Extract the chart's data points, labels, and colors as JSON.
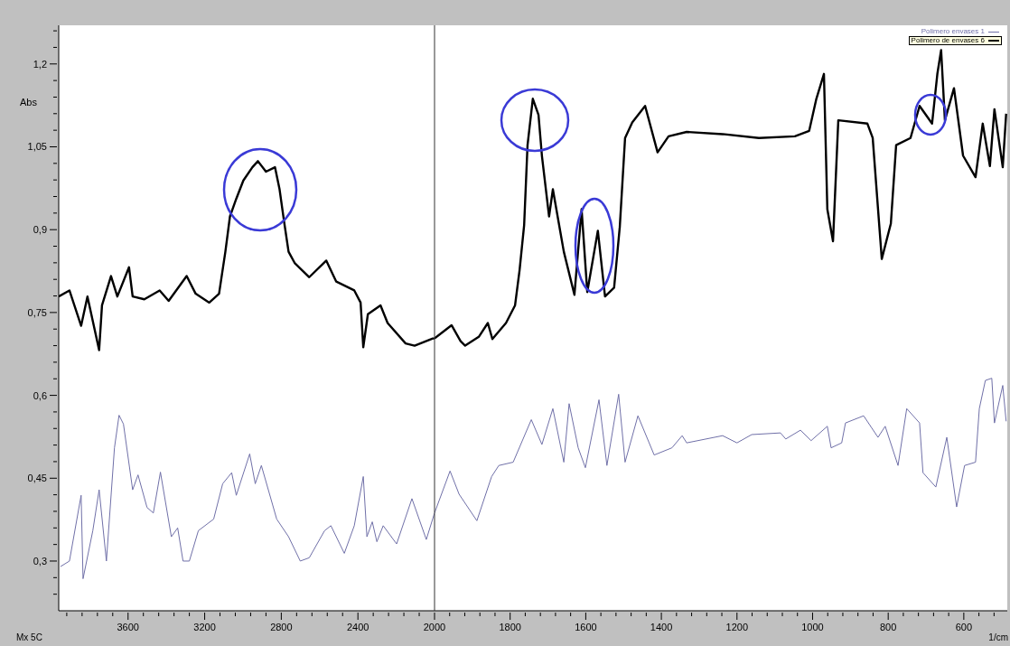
{
  "chart_data": [
    {
      "type": "line",
      "ylabel": "Abs",
      "annotations": [
        "Mx 5C"
      ],
      "xlim": [
        3962,
        2000
      ],
      "ylim": [
        0.21,
        1.27
      ],
      "xticks": [
        {
          "value": 3920,
          "label": null
        },
        {
          "value": 3840,
          "label": null
        },
        {
          "value": 3760,
          "label": null
        },
        {
          "value": 3680,
          "label": null
        },
        3600,
        {
          "value": 3520,
          "label": null
        },
        {
          "value": 3440,
          "label": null
        },
        {
          "value": 3360,
          "label": null
        },
        {
          "value": 3280,
          "label": null
        },
        3200,
        {
          "value": 3120,
          "label": null
        },
        {
          "value": 3040,
          "label": null
        },
        {
          "value": 2960,
          "label": null
        },
        {
          "value": 2880,
          "label": null
        },
        2800,
        {
          "value": 2720,
          "label": null
        },
        {
          "value": 2640,
          "label": null
        },
        {
          "value": 2560,
          "label": null
        },
        {
          "value": 2480,
          "label": null
        },
        2400,
        {
          "value": 2320,
          "label": null
        },
        {
          "value": 2240,
          "label": null
        },
        {
          "value": 2160,
          "label": null
        },
        {
          "value": 2080,
          "label": null
        },
        2000
      ],
      "yticks": [
        {
          "value": 0.24,
          "label": null
        },
        {
          "value": 0.27,
          "label": null
        },
        {
          "value": 0.3,
          "label": "0,3"
        },
        {
          "value": 0.33,
          "label": null
        },
        {
          "value": 0.36,
          "label": null
        },
        {
          "value": 0.39,
          "label": null
        },
        {
          "value": 0.42,
          "label": null
        },
        {
          "value": 0.45,
          "label": "0,45"
        },
        {
          "value": 0.48,
          "label": null
        },
        {
          "value": 0.51,
          "label": null
        },
        {
          "value": 0.54,
          "label": null
        },
        {
          "value": 0.57,
          "label": null
        },
        {
          "value": 0.6,
          "label": "0,6"
        },
        {
          "value": 0.63,
          "label": null
        },
        {
          "value": 0.66,
          "label": null
        },
        {
          "value": 0.69,
          "label": null
        },
        {
          "value": 0.72,
          "label": null
        },
        {
          "value": 0.75,
          "label": "0,75"
        },
        {
          "value": 0.78,
          "label": null
        },
        {
          "value": 0.81,
          "label": null
        },
        {
          "value": 0.84,
          "label": null
        },
        {
          "value": 0.87,
          "label": null
        },
        {
          "value": 0.9,
          "label": "0,9"
        },
        {
          "value": 0.93,
          "label": null
        },
        {
          "value": 0.96,
          "label": null
        },
        {
          "value": 0.99,
          "label": null
        },
        {
          "value": 1.02,
          "label": null
        },
        {
          "value": 1.05,
          "label": "1,05"
        },
        {
          "value": 1.08,
          "label": null
        },
        {
          "value": 1.11,
          "label": null
        },
        {
          "value": 1.14,
          "label": null
        },
        {
          "value": 1.17,
          "label": null
        },
        {
          "value": 1.2,
          "label": "1,2"
        },
        {
          "value": 1.23,
          "label": null
        },
        {
          "value": 1.26,
          "label": null
        }
      ],
      "series": [
        {
          "color": "#7070a8",
          "x": [
            3953,
            3906,
            3845,
            3835,
            3784,
            3751,
            3713,
            3671,
            3647,
            3624,
            3576,
            3548,
            3501,
            3468,
            3431,
            3374,
            3341,
            3313,
            3280,
            3233,
            3153,
            3106,
            3059,
            3035,
            2965,
            2936,
            2904,
            2824,
            2762,
            2701,
            2654,
            2574,
            2541,
            2471,
            2419,
            2372,
            2353,
            2325,
            2301,
            2268,
            2198,
            2118,
            2043,
            2000
          ],
          "values": [
            0.29,
            0.3,
            0.419,
            0.268,
            0.355,
            0.429,
            0.3,
            0.505,
            0.564,
            0.548,
            0.429,
            0.456,
            0.397,
            0.387,
            0.461,
            0.344,
            0.36,
            0.3,
            0.3,
            0.355,
            0.376,
            0.44,
            0.46,
            0.419,
            0.494,
            0.44,
            0.473,
            0.376,
            0.344,
            0.3,
            0.306,
            0.355,
            0.364,
            0.314,
            0.364,
            0.453,
            0.344,
            0.371,
            0.335,
            0.364,
            0.331,
            0.413,
            0.339,
            0.387
          ]
        },
        {
          "color": "#000000",
          "x": [
            3962,
            3906,
            3845,
            3812,
            3751,
            3736,
            3689,
            3656,
            3595,
            3576,
            3515,
            3435,
            3388,
            3294,
            3247,
            3176,
            3125,
            3092,
            3068,
            3035,
            2998,
            2951,
            2922,
            2880,
            2833,
            2809,
            2786,
            2762,
            2729,
            2654,
            2565,
            2513,
            2419,
            2386,
            2372,
            2348,
            2282,
            2245,
            2151,
            2104,
            2009,
            2000
          ],
          "values": [
            0.779,
            0.79,
            0.726,
            0.779,
            0.682,
            0.763,
            0.816,
            0.779,
            0.832,
            0.779,
            0.774,
            0.79,
            0.771,
            0.816,
            0.784,
            0.768,
            0.784,
            0.86,
            0.924,
            0.956,
            0.989,
            1.013,
            1.024,
            1.005,
            1.013,
            0.973,
            0.916,
            0.86,
            0.839,
            0.814,
            0.844,
            0.806,
            0.79,
            0.768,
            0.687,
            0.747,
            0.763,
            0.731,
            0.694,
            0.69,
            0.703,
            0.703
          ]
        }
      ]
    },
    {
      "type": "line",
      "xlabel": "1/cm",
      "legend": "top right",
      "tick_labels": "x",
      "xlim": [
        2000,
        485
      ],
      "ylim": [
        0.21,
        1.27
      ],
      "xticks": [
        {
          "value": 1960,
          "label": null
        },
        {
          "value": 1920,
          "label": null
        },
        {
          "value": 1880,
          "label": null
        },
        {
          "value": 1840,
          "label": null
        },
        1800,
        {
          "value": 1760,
          "label": null
        },
        {
          "value": 1720,
          "label": null
        },
        {
          "value": 1680,
          "label": null
        },
        {
          "value": 1640,
          "label": null
        },
        1600,
        {
          "value": 1560,
          "label": null
        },
        {
          "value": 1520,
          "label": null
        },
        {
          "value": 1480,
          "label": null
        },
        {
          "value": 1440,
          "label": null
        },
        1400,
        {
          "value": 1360,
          "label": null
        },
        {
          "value": 1320,
          "label": null
        },
        {
          "value": 1280,
          "label": null
        },
        {
          "value": 1240,
          "label": null
        },
        1200,
        {
          "value": 1160,
          "label": null
        },
        {
          "value": 1120,
          "label": null
        },
        {
          "value": 1080,
          "label": null
        },
        {
          "value": 1040,
          "label": null
        },
        1000,
        {
          "value": 960,
          "label": null
        },
        {
          "value": 920,
          "label": null
        },
        {
          "value": 880,
          "label": null
        },
        {
          "value": 840,
          "label": null
        },
        800,
        {
          "value": 760,
          "label": null
        },
        {
          "value": 720,
          "label": null
        },
        {
          "value": 680,
          "label": null
        },
        {
          "value": 640,
          "label": null
        },
        600,
        {
          "value": 560,
          "label": null
        },
        {
          "value": 520,
          "label": null
        }
      ],
      "series": [
        {
          "name": "Polimero envases 1",
          "color": "#7070a8",
          "x": [
            2000,
            1959,
            1935,
            1888,
            1849,
            1830,
            1792,
            1744,
            1716,
            1687,
            1658,
            1644,
            1620,
            1601,
            1565,
            1544,
            1513,
            1496,
            1462,
            1419,
            1372,
            1345,
            1333,
            1238,
            1200,
            1161,
            1085,
            1071,
            1032,
            1004,
            961,
            951,
            923,
            913,
            865,
            827,
            808,
            774,
            751,
            717,
            708,
            674,
            645,
            619,
            598,
            569,
            559,
            543,
            526,
            519,
            497,
            488
          ],
          "values": [
            0.387,
            0.463,
            0.421,
            0.373,
            0.453,
            0.473,
            0.479,
            0.556,
            0.511,
            0.576,
            0.479,
            0.585,
            0.505,
            0.469,
            0.592,
            0.473,
            0.602,
            0.479,
            0.563,
            0.492,
            0.505,
            0.527,
            0.514,
            0.527,
            0.514,
            0.529,
            0.532,
            0.521,
            0.537,
            0.518,
            0.544,
            0.505,
            0.514,
            0.55,
            0.563,
            0.524,
            0.544,
            0.473,
            0.576,
            0.55,
            0.46,
            0.434,
            0.524,
            0.398,
            0.473,
            0.479,
            0.576,
            0.627,
            0.631,
            0.55,
            0.618,
            0.553
          ]
        },
        {
          "name": "Polimero de envases 6",
          "color": "#000000",
          "x": [
            2000,
            1955,
            1931,
            1919,
            1883,
            1859,
            1847,
            1811,
            1787,
            1775,
            1763,
            1754,
            1740,
            1725,
            1716,
            1697,
            1687,
            1658,
            1630,
            1611,
            1596,
            1568,
            1549,
            1525,
            1510,
            1496,
            1477,
            1443,
            1410,
            1381,
            1333,
            1238,
            1142,
            1047,
            1009,
            990,
            970,
            961,
            946,
            932,
            855,
            841,
            817,
            793,
            779,
            741,
            717,
            684,
            670,
            660,
            650,
            626,
            602,
            569,
            550,
            531,
            519,
            497,
            488
          ],
          "values": [
            0.703,
            0.727,
            0.698,
            0.69,
            0.706,
            0.731,
            0.702,
            0.731,
            0.763,
            0.827,
            0.908,
            1.053,
            1.137,
            1.108,
            1.034,
            0.924,
            0.973,
            0.86,
            0.782,
            0.937,
            0.787,
            0.898,
            0.779,
            0.795,
            0.905,
            1.066,
            1.094,
            1.124,
            1.04,
            1.069,
            1.077,
            1.073,
            1.066,
            1.069,
            1.079,
            1.137,
            1.182,
            0.937,
            0.879,
            1.098,
            1.092,
            1.066,
            0.847,
            0.911,
            1.053,
            1.066,
            1.124,
            1.092,
            1.182,
            1.225,
            1.098,
            1.156,
            1.034,
            0.995,
            1.092,
            1.015,
            1.118,
            1.013,
            1.11
          ]
        }
      ]
    }
  ]
}
